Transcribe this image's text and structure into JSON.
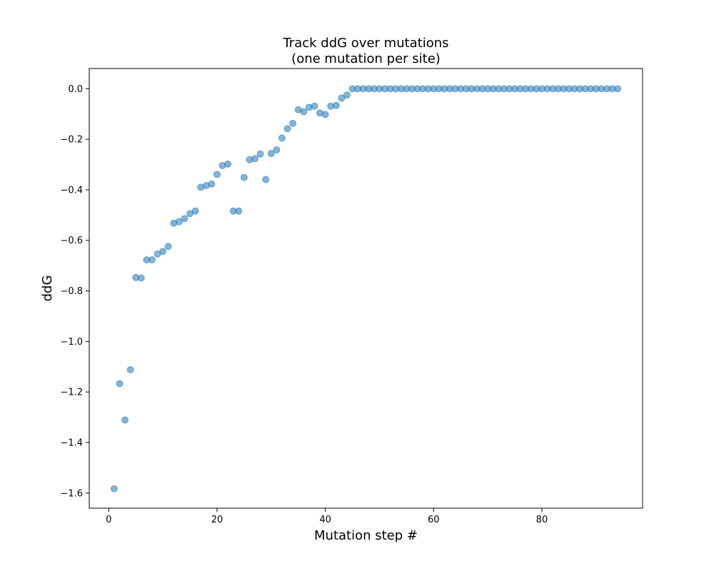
{
  "chart_data": {
    "type": "scatter",
    "title": "Track ddG over mutations",
    "subtitle": "(one mutation per site)",
    "xlabel": "Mutation step #",
    "ylabel": "ddG",
    "xlim": [
      -3.6,
      98.6
    ],
    "ylim": [
      -1.66,
      0.08
    ],
    "x_ticks": [
      0,
      20,
      40,
      60,
      80
    ],
    "x_tick_labels": [
      "0",
      "20",
      "40",
      "60",
      "80"
    ],
    "y_ticks": [
      -1.6,
      -1.4,
      -1.2,
      -1.0,
      -0.8,
      -0.6,
      -0.4,
      -0.2,
      0.0
    ],
    "y_tick_labels": [
      "−1.6",
      "−1.4",
      "−1.2",
      "−1.0",
      "−0.8",
      "−0.6",
      "−0.4",
      "−0.2",
      "0.0"
    ],
    "grid": false,
    "marker_color": "#1f77b4",
    "marker_alpha": 0.55,
    "series": [
      {
        "x": [
          1,
          2,
          3,
          4,
          5,
          6,
          7,
          8,
          9,
          10,
          11,
          12,
          13,
          14,
          15,
          16,
          17,
          18,
          19,
          20,
          21,
          22,
          23,
          24,
          25,
          26,
          27,
          28,
          29,
          30,
          31,
          32,
          33,
          34,
          35,
          36,
          37,
          38,
          39,
          40,
          41,
          42,
          43,
          44,
          45,
          46,
          47,
          48,
          49,
          50,
          51,
          52,
          53,
          54,
          55,
          56,
          57,
          58,
          59,
          60,
          61,
          62,
          63,
          64,
          65,
          66,
          67,
          68,
          69,
          70,
          71,
          72,
          73,
          74,
          75,
          76,
          77,
          78,
          79,
          80,
          81,
          82,
          83,
          84,
          85,
          86,
          87,
          88,
          89,
          90,
          91,
          92,
          93,
          94
        ],
        "y": [
          -1.583,
          -1.167,
          -1.311,
          -1.112,
          -0.747,
          -0.749,
          -0.677,
          -0.677,
          -0.654,
          -0.644,
          -0.624,
          -0.532,
          -0.526,
          -0.514,
          -0.494,
          -0.484,
          -0.39,
          -0.383,
          -0.377,
          -0.339,
          -0.304,
          -0.298,
          -0.484,
          -0.484,
          -0.351,
          -0.281,
          -0.277,
          -0.258,
          -0.359,
          -0.256,
          -0.242,
          -0.195,
          -0.158,
          -0.137,
          -0.083,
          -0.091,
          -0.074,
          -0.069,
          -0.096,
          -0.102,
          -0.069,
          -0.066,
          -0.037,
          -0.025,
          0,
          0,
          0,
          0,
          0,
          0,
          0,
          0,
          0,
          0,
          0,
          0,
          0,
          0,
          0,
          0,
          0,
          0,
          0,
          0,
          0,
          0,
          0,
          0,
          0,
          0,
          0,
          0,
          0,
          0,
          0,
          0,
          0,
          0,
          0,
          0,
          0,
          0,
          0,
          0,
          0,
          0,
          0,
          0,
          0,
          0,
          0,
          0,
          0,
          0
        ]
      }
    ]
  }
}
